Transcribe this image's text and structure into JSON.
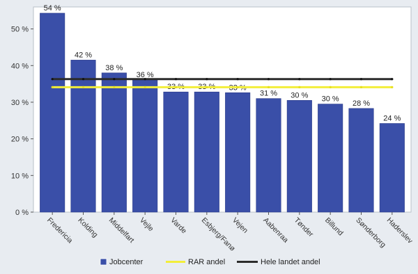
{
  "chart_data": {
    "type": "bar",
    "categories": [
      "Fredericia",
      "Kolding",
      "Middelfart",
      "Vejle",
      "Varde",
      "Esbjerg/Fanø",
      "Vejen",
      "Aabenraa",
      "Tønder",
      "Billund",
      "Sønderborg",
      "Haderslev"
    ],
    "series": [
      {
        "name": "Jobcenter",
        "type": "bar",
        "values": [
          54.3,
          41.5,
          38.0,
          36.1,
          32.8,
          32.8,
          32.6,
          31.0,
          30.5,
          29.5,
          28.3,
          24.2
        ],
        "labels": [
          "54 %",
          "42 %",
          "38 %",
          "36 %",
          "33 %",
          "33 %",
          "33 %",
          "31 %",
          "30 %",
          "30 %",
          "28 %",
          "24 %"
        ]
      },
      {
        "name": "RAR andel",
        "type": "line",
        "values": [
          34.1,
          34.1,
          34.1,
          34.1,
          34.1,
          34.1,
          34.1,
          34.1,
          34.1,
          34.1,
          34.1,
          34.1
        ]
      },
      {
        "name": "Hele landet andel",
        "type": "line",
        "values": [
          36.3,
          36.3,
          36.3,
          36.3,
          36.3,
          36.3,
          36.3,
          36.3,
          36.3,
          36.3,
          36.3,
          36.3
        ]
      }
    ],
    "yticks": [
      "0 %",
      "10 %",
      "20 %",
      "30 %",
      "40 %",
      "50 %"
    ],
    "ytick_values": [
      0,
      10,
      20,
      30,
      40,
      50
    ],
    "ylim": [
      0,
      56
    ],
    "title": "",
    "xlabel": "",
    "ylabel": "",
    "legend_position": "bottom",
    "colors": {
      "bar": "#3a4fa8",
      "bar_edge": "#2a3a88",
      "rar_line": "#f2ee3a",
      "national_line": "#2b2b2b",
      "plot_bg": "#ffffff",
      "frame_bg": "#e8ecf1"
    }
  }
}
